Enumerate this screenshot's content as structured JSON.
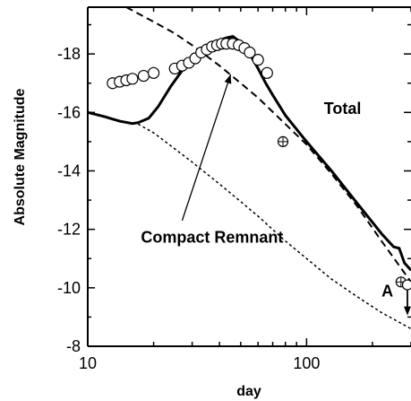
{
  "chart_data": {
    "type": "line",
    "xlabel": "day",
    "ylabel": "Absolute Magnitude",
    "x_scale": "log",
    "xlim": [
      10,
      300
    ],
    "ylim": [
      -8,
      -19.6
    ],
    "y_inverted": true,
    "grid": false,
    "x_ticks": [
      10,
      100
    ],
    "x_tick_labels": [
      "10",
      "100"
    ],
    "y_ticks": [
      -18,
      -16,
      -14,
      -12,
      -10,
      -8
    ],
    "y_tick_labels": [
      "-18",
      "-16",
      "-14",
      "-12",
      "-10",
      "-8"
    ],
    "annotations": [
      {
        "text": "Total",
        "x": 120,
        "y": -15.95
      },
      {
        "text": "Compact Remnant",
        "x": 17.5,
        "y": -11.55,
        "arrow_to": {
          "x": 45,
          "y": -17.3
        }
      },
      {
        "text": "A",
        "x": 220,
        "y": -9.7
      }
    ],
    "series": [
      {
        "style": "thick-solid",
        "x": [
          10,
          12,
          14,
          16,
          17,
          19,
          21,
          24,
          28,
          33,
          38,
          43,
          46,
          50,
          55,
          60,
          65,
          70,
          80,
          100,
          130,
          170,
          220,
          250,
          265,
          280,
          300
        ],
        "y": [
          -16.0,
          -15.85,
          -15.7,
          -15.62,
          -15.65,
          -15.8,
          -16.2,
          -16.9,
          -17.6,
          -18.1,
          -18.4,
          -18.55,
          -18.6,
          -18.4,
          -18.0,
          -17.5,
          -17.0,
          -16.6,
          -15.9,
          -15.0,
          -14.0,
          -12.9,
          -11.85,
          -11.4,
          -11.35,
          -10.85,
          -10.6
        ]
      },
      {
        "style": "dashed",
        "x": [
          15,
          20,
          25,
          30,
          40,
          50,
          60,
          80,
          100,
          130,
          170,
          220,
          300
        ],
        "y": [
          -19.6,
          -19.1,
          -18.7,
          -18.3,
          -17.6,
          -17.0,
          -16.5,
          -15.6,
          -14.9,
          -13.9,
          -12.8,
          -11.6,
          -10.2
        ]
      },
      {
        "style": "dotted",
        "x": [
          17,
          20,
          25,
          30,
          40,
          50,
          60,
          80,
          100,
          130,
          170,
          220,
          300
        ],
        "y": [
          -15.6,
          -15.3,
          -14.75,
          -14.3,
          -13.55,
          -12.95,
          -12.45,
          -11.6,
          -11.0,
          -10.3,
          -9.7,
          -9.15,
          -8.6
        ]
      }
    ],
    "observations": {
      "marker": "open-circle",
      "x": [
        13,
        14,
        15,
        16,
        18,
        20,
        25,
        27,
        29,
        31,
        33,
        35,
        37,
        39,
        41,
        43,
        46,
        49,
        52,
        55,
        60,
        66
      ],
      "y": [
        -17.0,
        -17.05,
        -17.1,
        -17.15,
        -17.25,
        -17.35,
        -17.5,
        -17.6,
        -17.7,
        -17.85,
        -18.05,
        -18.15,
        -18.25,
        -18.3,
        -18.35,
        -18.35,
        -18.35,
        -18.3,
        -18.2,
        -18.05,
        -17.8,
        -17.35
      ]
    },
    "special_points": {
      "marker": "circle-plus",
      "x": [
        78,
        270
      ],
      "y": [
        -15.0,
        -10.2
      ]
    },
    "upper_limit": {
      "x": 300,
      "y": -10.1,
      "marker": "open-circle-down-arrow"
    }
  }
}
